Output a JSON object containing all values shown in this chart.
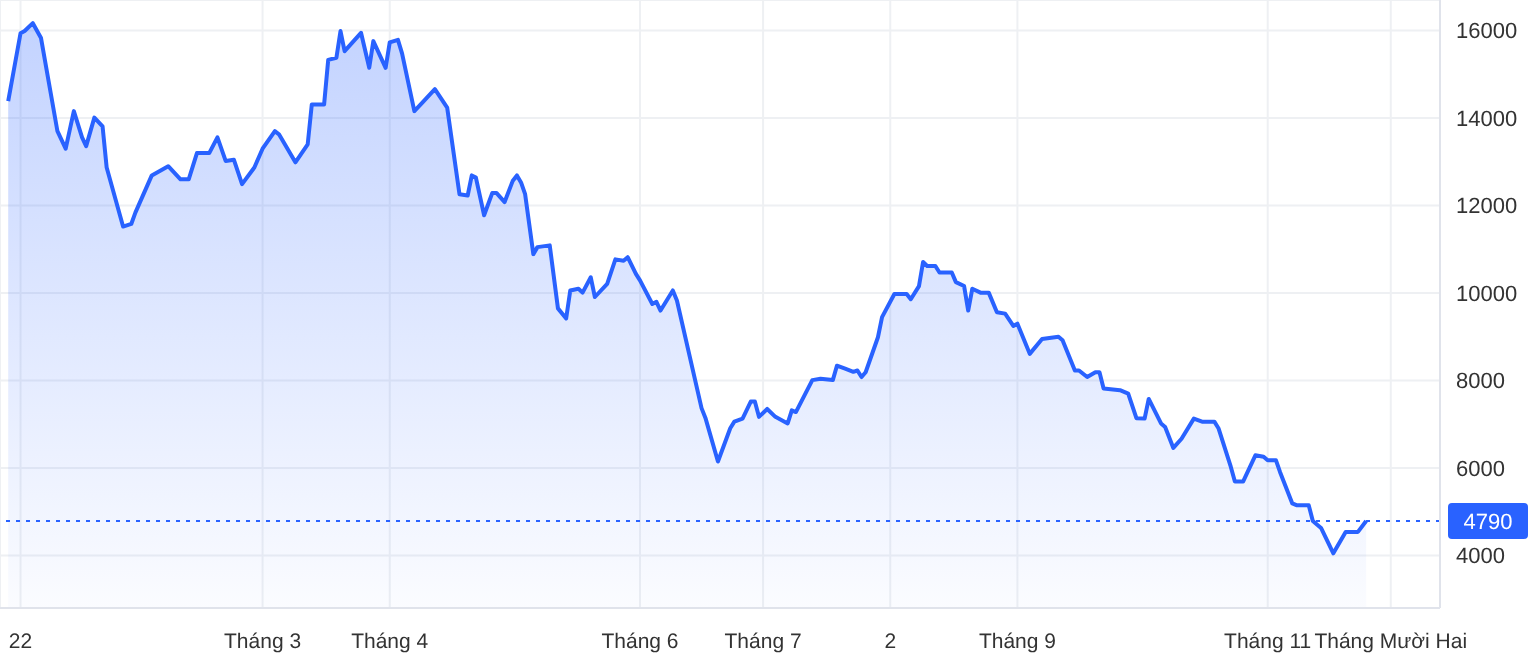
{
  "chart_data": {
    "type": "area",
    "x": [
      "2021-12-29",
      "2022-01-01",
      "2022-01-02",
      "2022-01-04",
      "2022-01-06",
      "2022-01-10",
      "2022-01-12",
      "2022-01-14",
      "2022-01-16",
      "2022-01-17",
      "2022-01-19",
      "2022-01-21",
      "2022-01-22",
      "2022-01-26",
      "2022-01-28",
      "2022-01-29",
      "2022-02-02",
      "2022-02-06",
      "2022-02-09",
      "2022-02-11",
      "2022-02-13",
      "2022-02-16",
      "2022-02-18",
      "2022-02-20",
      "2022-02-22",
      "2022-02-24",
      "2022-02-27",
      "2022-03-01",
      "2022-03-04",
      "2022-03-05",
      "2022-03-09",
      "2022-03-12",
      "2022-03-13",
      "2022-03-16",
      "2022-03-17",
      "2022-03-19",
      "2022-03-20",
      "2022-03-21",
      "2022-03-25",
      "2022-03-27",
      "2022-03-28",
      "2022-03-31",
      "2022-04-01",
      "2022-04-03",
      "2022-04-04",
      "2022-04-07",
      "2022-04-09",
      "2022-04-12",
      "2022-04-15",
      "2022-04-18",
      "2022-04-20",
      "2022-04-21",
      "2022-04-22",
      "2022-04-24",
      "2022-04-26",
      "2022-04-27",
      "2022-04-29",
      "2022-05-01",
      "2022-05-02",
      "2022-05-03",
      "2022-05-04",
      "2022-05-06",
      "2022-05-07",
      "2022-05-10",
      "2022-05-12",
      "2022-05-14",
      "2022-05-15",
      "2022-05-17",
      "2022-05-18",
      "2022-05-20",
      "2022-05-21",
      "2022-05-24",
      "2022-05-26",
      "2022-05-28",
      "2022-05-29",
      "2022-05-31",
      "2022-06-01",
      "2022-06-04",
      "2022-06-05",
      "2022-06-06",
      "2022-06-09",
      "2022-06-10",
      "2022-06-16",
      "2022-06-17",
      "2022-06-20",
      "2022-06-23",
      "2022-06-24",
      "2022-06-26",
      "2022-06-28",
      "2022-06-29",
      "2022-06-30",
      "2022-07-02",
      "2022-07-04",
      "2022-07-07",
      "2022-07-08",
      "2022-07-09",
      "2022-07-13",
      "2022-07-15",
      "2022-07-18",
      "2022-07-19",
      "2022-07-21",
      "2022-07-23",
      "2022-07-24",
      "2022-07-25",
      "2022-07-26",
      "2022-07-29",
      "2022-07-30",
      "2022-08-02",
      "2022-08-05",
      "2022-08-06",
      "2022-08-08",
      "2022-08-09",
      "2022-08-10",
      "2022-08-12",
      "2022-08-13",
      "2022-08-16",
      "2022-08-17",
      "2022-08-19",
      "2022-08-20",
      "2022-08-21",
      "2022-08-23",
      "2022-08-25",
      "2022-08-27",
      "2022-08-29",
      "2022-08-31",
      "2022-09-01",
      "2022-09-04",
      "2022-09-07",
      "2022-09-11",
      "2022-09-12",
      "2022-09-15",
      "2022-09-16",
      "2022-09-18",
      "2022-09-20",
      "2022-09-21",
      "2022-09-22",
      "2022-09-26",
      "2022-09-28",
      "2022-09-30",
      "2022-10-02",
      "2022-10-03",
      "2022-10-06",
      "2022-10-07",
      "2022-10-09",
      "2022-10-11",
      "2022-10-14",
      "2022-10-16",
      "2022-10-19",
      "2022-10-20",
      "2022-10-23",
      "2022-10-24",
      "2022-10-26",
      "2022-10-29",
      "2022-10-31",
      "2022-11-01",
      "2022-11-03",
      "2022-11-04",
      "2022-11-07",
      "2022-11-08",
      "2022-11-11",
      "2022-11-12",
      "2022-11-14",
      "2022-11-17",
      "2022-11-20",
      "2022-11-23",
      "2022-11-25"
    ],
    "series": [
      {
        "color": "#2962ff",
        "values": [
          14390,
          15940,
          15990,
          16170,
          15830,
          13700,
          13300,
          14160,
          13560,
          13360,
          14010,
          13810,
          12870,
          11520,
          11580,
          11840,
          12690,
          12900,
          12600,
          12600,
          13200,
          13200,
          13560,
          13020,
          13050,
          12490,
          12870,
          13300,
          13700,
          13630,
          12990,
          13400,
          14310,
          14310,
          15330,
          15380,
          15990,
          15530,
          15950,
          15150,
          15760,
          15150,
          15730,
          15790,
          15480,
          14160,
          14360,
          14660,
          14240,
          12260,
          12230,
          12690,
          12640,
          11780,
          12290,
          12290,
          12080,
          12570,
          12690,
          12530,
          12260,
          10890,
          11050,
          11090,
          9650,
          9420,
          10060,
          10100,
          10010,
          10360,
          9910,
          10210,
          10770,
          10740,
          10820,
          10440,
          10290,
          9750,
          9800,
          9600,
          10060,
          9830,
          7370,
          7130,
          6150,
          6910,
          7060,
          7130,
          7520,
          7520,
          7170,
          7350,
          7170,
          7020,
          7320,
          7280,
          8010,
          8040,
          8010,
          8340,
          8270,
          8200,
          8230,
          8080,
          8190,
          8990,
          9450,
          9980,
          9980,
          9860,
          10160,
          10710,
          10620,
          10620,
          10470,
          10470,
          10250,
          10160,
          9600,
          10100,
          10010,
          10010,
          9560,
          9530,
          9250,
          9300,
          8610,
          8950,
          9000,
          8920,
          8230,
          8230,
          8080,
          8190,
          8190,
          7820,
          7780,
          7700,
          7140,
          7130,
          7580,
          7020,
          6940,
          6460,
          6670,
          7130,
          7060,
          7060,
          6910,
          6030,
          5690,
          5690,
          6290,
          6260,
          6180,
          6180,
          5910,
          5190,
          5150,
          5150,
          4790,
          4630,
          4050,
          4540,
          4540,
          4790
        ]
      }
    ],
    "xlim": [
      "2021-12-27",
      "2022-12-13"
    ],
    "xticks": [
      {
        "value": "2022-01-01",
        "label": "22"
      },
      {
        "value": "2022-03-01",
        "label": "Tháng 3"
      },
      {
        "value": "2022-04-01",
        "label": "Tháng 4"
      },
      {
        "value": "2022-06-01",
        "label": "Tháng 6"
      },
      {
        "value": "2022-07-01",
        "label": "Tháng 7"
      },
      {
        "value": "2022-08-01",
        "label": "2"
      },
      {
        "value": "2022-09-01",
        "label": "Tháng 9"
      },
      {
        "value": "2022-11-01",
        "label": "Tháng 11"
      },
      {
        "value": "2022-12-01",
        "label": "Tháng Mười Hai"
      }
    ],
    "ylim": [
      2800,
      16700
    ],
    "yticks": [
      4000,
      6000,
      8000,
      10000,
      12000,
      14000,
      16000
    ],
    "ref_lines": [
      {
        "axis": "y",
        "value": 4790,
        "label": "4790",
        "color": "#2962ff",
        "line_style": "dotted"
      }
    ],
    "grid": true,
    "marker": "none",
    "line_style": "solid"
  }
}
